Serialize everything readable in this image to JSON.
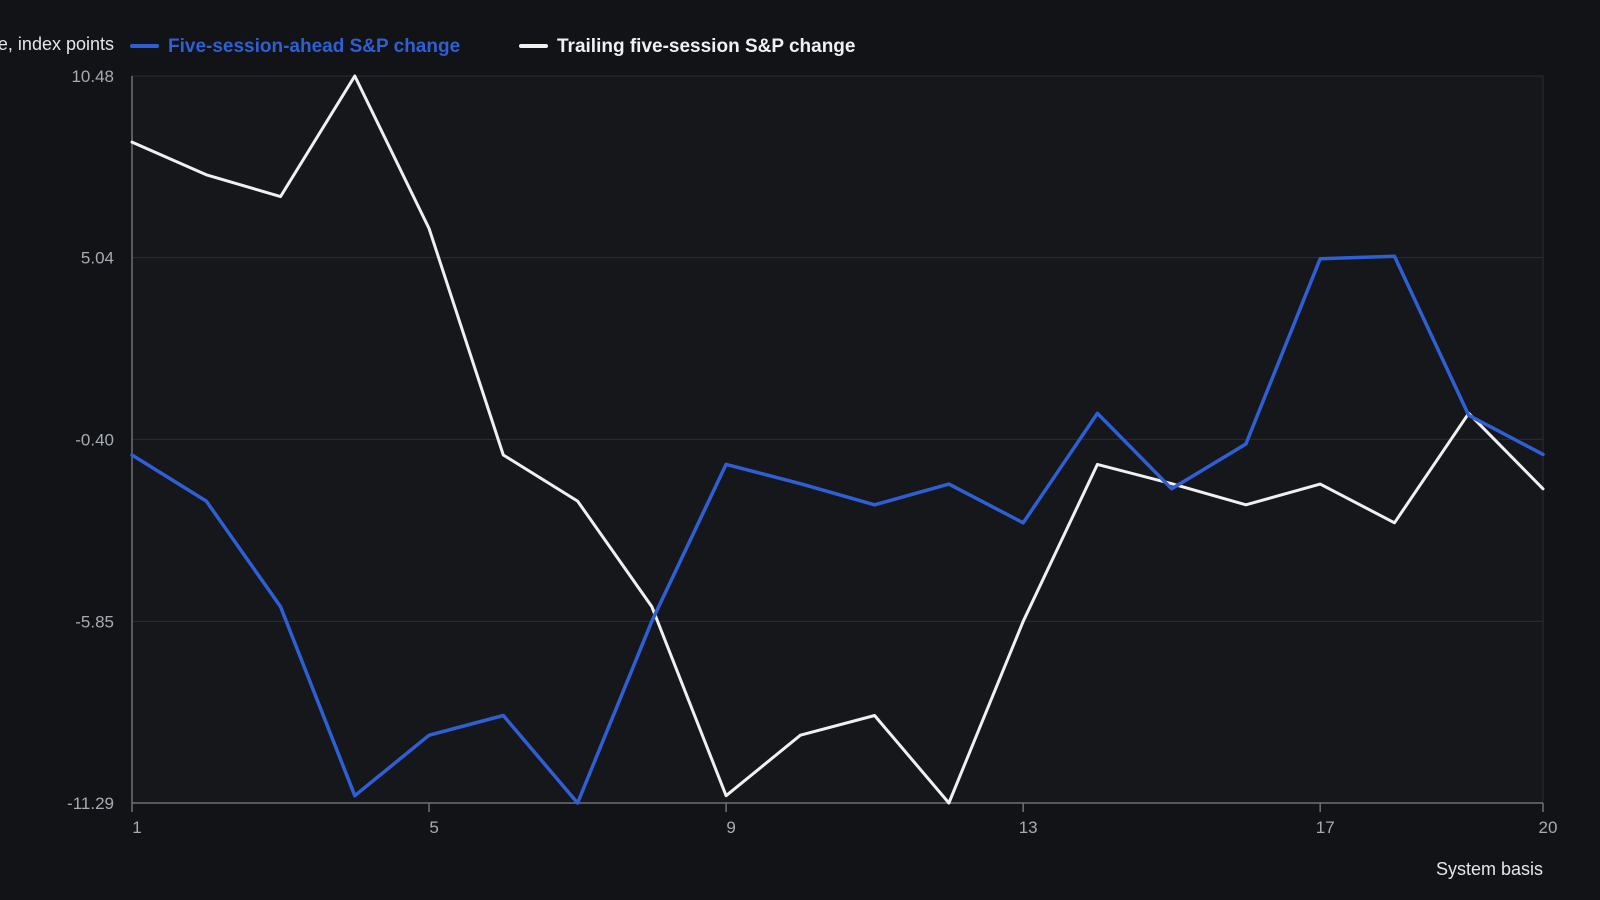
{
  "colors": {
    "background": "#111317",
    "plot_area": "#15171b",
    "grid": "#2a2d33",
    "axis": "#6d7178",
    "ahead_series": "#2f5fd4",
    "trailing_series": "#f0f0f0"
  },
  "chart_data": {
    "type": "line",
    "title": "",
    "ylabel": "Change, index points",
    "xlabel": "System basis",
    "ylim": [
      -11.29,
      10.48
    ],
    "xlim": [
      1,
      20
    ],
    "y_ticks": [
      {
        "value": 10.48,
        "label": "10.48"
      },
      {
        "value": 5.04,
        "label": "5.04"
      },
      {
        "value": -0.4,
        "label": "-0.40"
      },
      {
        "value": -5.85,
        "label": "-5.85"
      },
      {
        "value": -11.29,
        "label": "-11.29"
      }
    ],
    "x_ticks": [
      {
        "value": 1,
        "label": "1"
      },
      {
        "value": 5,
        "label": "5"
      },
      {
        "value": 9,
        "label": "9"
      },
      {
        "value": 13,
        "label": "13"
      },
      {
        "value": 17,
        "label": "17"
      },
      {
        "value": 20,
        "label": "20"
      }
    ],
    "grid": true,
    "legend_position": "top-left",
    "x": [
      1,
      2,
      3,
      4,
      5,
      6,
      7,
      8,
      9,
      10,
      11,
      12,
      13,
      14,
      15,
      16,
      17,
      18,
      19,
      20
    ],
    "series": [
      {
        "name": "Five-session-ahead S&P change",
        "color": "#2f5fd4",
        "values": [
          -0.87,
          -2.25,
          -5.41,
          -11.07,
          -9.26,
          -8.67,
          -11.29,
          -5.85,
          -1.15,
          -1.73,
          -2.36,
          -1.74,
          -2.9,
          0.38,
          -1.88,
          -0.54,
          5.01,
          5.08,
          0.32,
          -0.85
        ]
      },
      {
        "name": "Trailing five-session S&P change",
        "color": "#f0f0f0",
        "values": [
          8.5,
          7.52,
          6.87,
          10.48,
          5.91,
          -0.87,
          -2.25,
          -5.41,
          -11.07,
          -9.26,
          -8.67,
          -11.29,
          -5.85,
          -1.15,
          -1.73,
          -2.36,
          -1.74,
          -2.9,
          0.38,
          -1.88
        ]
      }
    ]
  }
}
